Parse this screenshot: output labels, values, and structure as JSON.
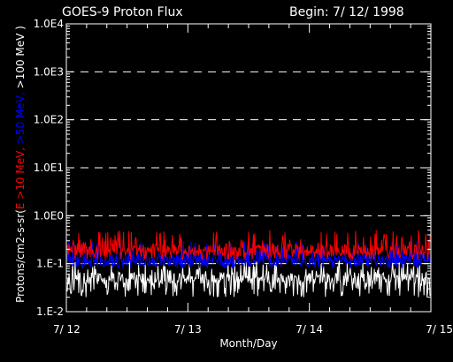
{
  "chart_data": {
    "type": "line",
    "title": "GOES-9 Proton Flux",
    "begin_label": "Begin: 7/ 12/ 1998",
    "xlabel": "Month/Day",
    "ylabel_parts": [
      {
        "text": "Protons/cm2-s-sr(",
        "color": "#ffffff"
      },
      {
        "text": "E >10 MeV, ",
        "color": "#ff0000"
      },
      {
        "text": ">50 MeV, ",
        "color": "#0000ff"
      },
      {
        "text": ">100 MeV )",
        "color": "#ffffff"
      }
    ],
    "y_scale": "log",
    "ylim": [
      0.01,
      10000
    ],
    "y_ticks": [
      {
        "value": 10000,
        "label": "1.0E4"
      },
      {
        "value": 1000,
        "label": "1.0E3"
      },
      {
        "value": 100,
        "label": "1.0E2"
      },
      {
        "value": 10,
        "label": "1.0E1"
      },
      {
        "value": 1,
        "label": "1.0E0"
      },
      {
        "value": 0.1,
        "label": "1.E-1"
      },
      {
        "value": 0.01,
        "label": "1.E-2"
      }
    ],
    "x_ticks": [
      "7/ 12",
      "7/ 13",
      "7/ 14",
      "7/ 15"
    ],
    "grid": "dashed horizontal at each decade",
    "series": [
      {
        "name": "E >10 MeV",
        "color": "#ff0000",
        "typical_value": 0.19,
        "range": [
          0.12,
          0.5
        ]
      },
      {
        "name": ">50 MeV",
        "color": "#0000ff",
        "typical_value": 0.12,
        "range": [
          0.08,
          0.3
        ]
      },
      {
        "name": ">100 MeV",
        "color": "#ffffff",
        "typical_value": 0.05,
        "range": [
          0.02,
          0.12
        ]
      }
    ]
  }
}
